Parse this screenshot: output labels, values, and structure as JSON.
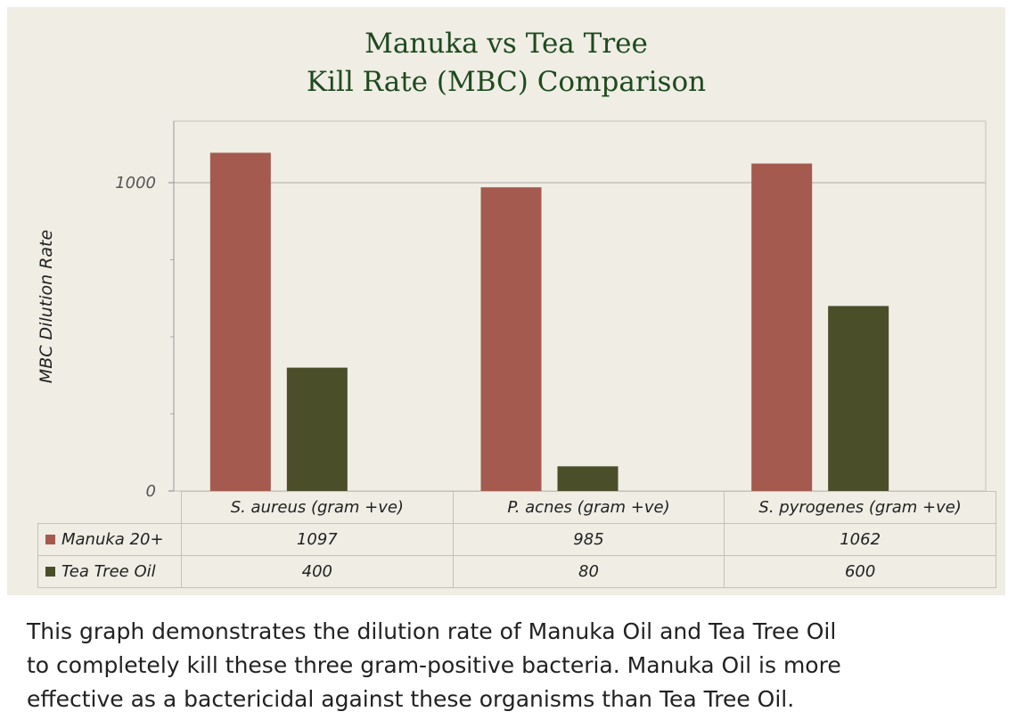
{
  "chart_data": {
    "type": "bar",
    "title": [
      "Manuka vs Tea Tree",
      "Kill Rate (MBC) Comparison"
    ],
    "ylabel": "MBC Dilution Rate",
    "xlabel": "",
    "ylim": [
      0,
      1200
    ],
    "yticks": [
      0,
      1000
    ],
    "grid": true,
    "categories": [
      "S. aureus (gram +ve)",
      "P. acnes (gram +ve)",
      "S. pyrogenes (gram +ve)"
    ],
    "series": [
      {
        "name": "Manuka 20+",
        "color": "#a55a4f",
        "values": [
          1097,
          985,
          1062
        ],
        "labels": [
          "1097",
          "985",
          "1062"
        ]
      },
      {
        "name": "Tea Tree Oil",
        "color": "#4a4f2a",
        "values": [
          400,
          80,
          600
        ],
        "labels": [
          "400",
          "80",
          "600"
        ]
      }
    ]
  },
  "caption": "This graph demonstrates the dilution rate of Manuka Oil and Tea Tree Oil\nto completely kill these three gram-positive bacteria. Manuka Oil is more\neffective as a bactericidal against these organisms than Tea Tree Oil."
}
